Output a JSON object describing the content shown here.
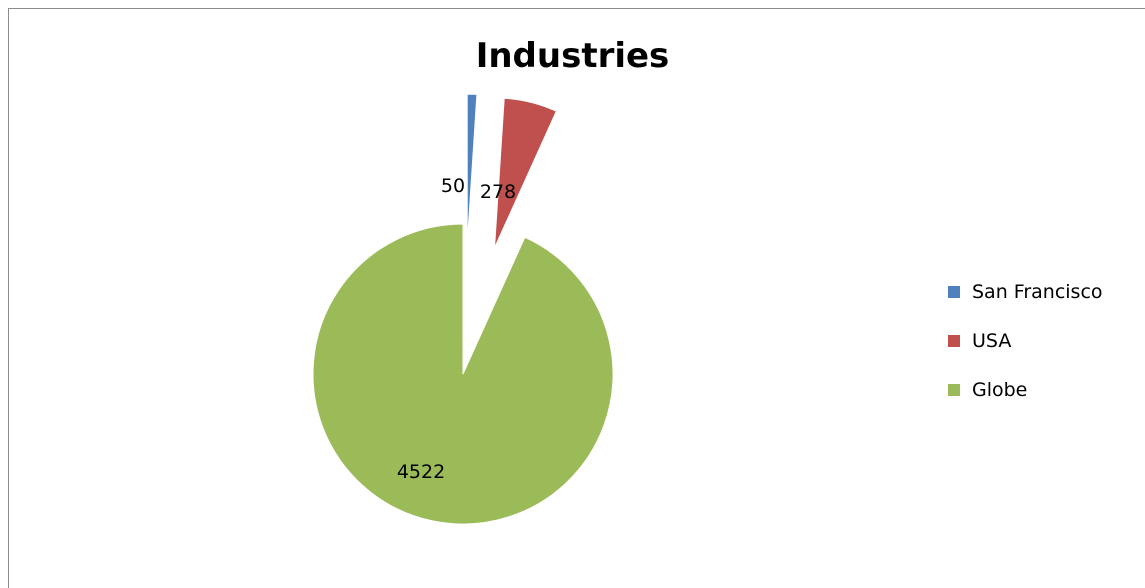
{
  "chart_data": {
    "type": "pie",
    "title": "Industries",
    "categories": [
      "San Francisco",
      "USA",
      "Globe"
    ],
    "values": [
      50,
      278,
      4522
    ],
    "colors": [
      "#4F81BD",
      "#C0504D",
      "#9BBB59"
    ],
    "exploded": [
      true,
      true,
      false
    ],
    "legend_position": "right",
    "data_labels": [
      "50",
      "278",
      "4522"
    ]
  }
}
